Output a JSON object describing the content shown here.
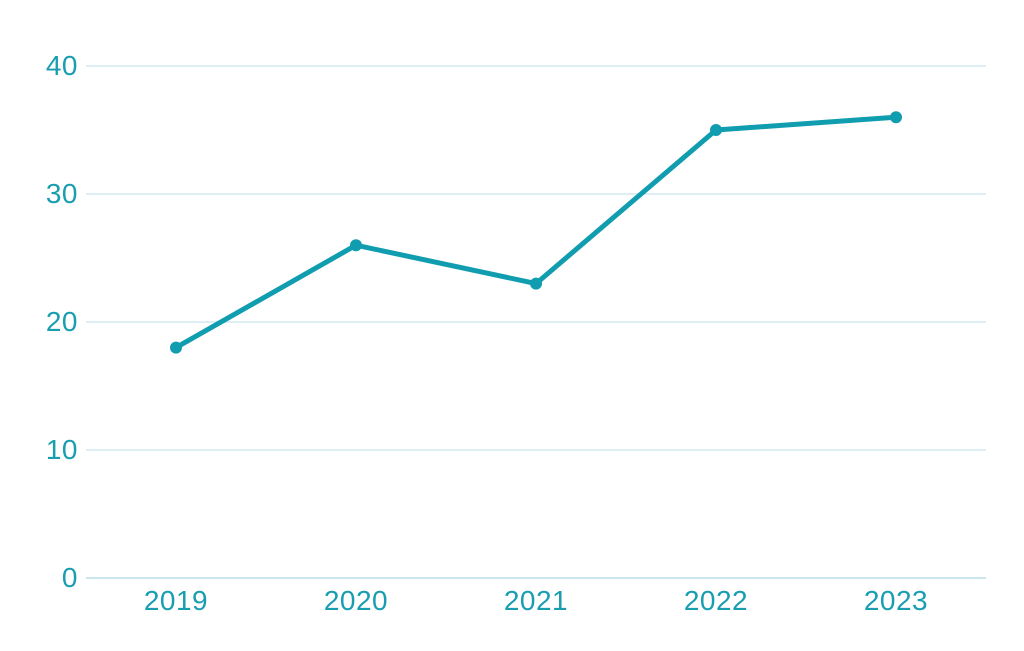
{
  "chart_data": {
    "type": "line",
    "title": "",
    "xlabel": "",
    "ylabel": "",
    "categories": [
      "2019",
      "2020",
      "2021",
      "2022",
      "2023"
    ],
    "values": [
      18,
      26,
      23,
      35,
      36
    ],
    "yticks": [
      "0",
      "10",
      "20",
      "30",
      "40"
    ],
    "ytick_values": [
      0,
      10,
      20,
      30,
      40
    ],
    "ylim": [
      0,
      40
    ],
    "grid": true,
    "legend": false,
    "colors": {
      "line": "#109daf",
      "marker": "#109daf",
      "tick_text": "#189db1",
      "gridline": "#ddeff5",
      "zero_line": "#c9e6ef",
      "background": "#ffffff"
    }
  }
}
